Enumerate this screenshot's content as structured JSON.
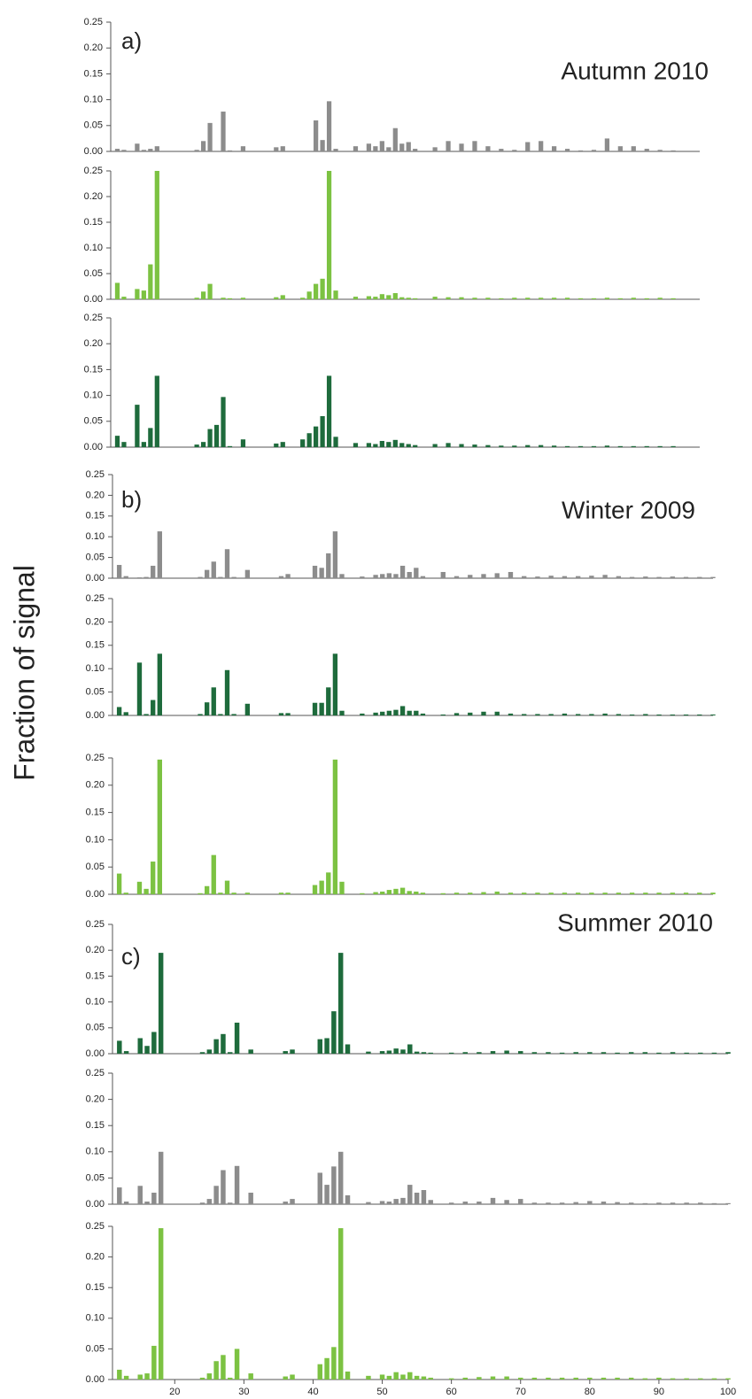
{
  "ylabel": "Fraction of signal",
  "chart_data": [
    {
      "type": "bar",
      "panel_label": "a)",
      "title": "Autumn 2010",
      "color": "#8c8c8c",
      "x": [
        12,
        13,
        15,
        16,
        17,
        18,
        24,
        25,
        26,
        27,
        28,
        29,
        31,
        36,
        37,
        39,
        40,
        41,
        42,
        43,
        44,
        45,
        48,
        50,
        51,
        52,
        53,
        54,
        55,
        56,
        57,
        60,
        62,
        64,
        66,
        68,
        70,
        72,
        74,
        76,
        78,
        80,
        82,
        84,
        86,
        88,
        90,
        92,
        94,
        96,
        98,
        100
      ],
      "values": [
        0.005,
        0.003,
        0.015,
        0.003,
        0.005,
        0.01,
        0.003,
        0.02,
        0.055,
        0,
        0.077,
        0.002,
        0.01,
        0.008,
        0.01,
        0,
        0,
        0,
        0.06,
        0.022,
        0.097,
        0.005,
        0.01,
        0.015,
        0.01,
        0.02,
        0.008,
        0.045,
        0.015,
        0.018,
        0.005,
        0.008,
        0.02,
        0.015,
        0.02,
        0.01,
        0.005,
        0.003,
        0.018,
        0.02,
        0.01,
        0.005,
        0.002,
        0.003,
        0.025,
        0.01,
        0.01,
        0.005,
        0.003,
        0.002,
        0,
        0
      ],
      "xlim": [
        11,
        100
      ],
      "ylim": [
        0,
        0.25
      ],
      "yticks": [
        {
          "value": 0,
          "label": "0.00"
        },
        {
          "value": 0.05,
          "label": "0.05"
        },
        {
          "value": 0.1,
          "label": "0.10"
        },
        {
          "value": 0.15,
          "label": "0.15"
        },
        {
          "value": 0.2,
          "label": "0.20"
        },
        {
          "value": 0.25,
          "label": "0.25"
        }
      ]
    },
    {
      "type": "bar",
      "color": "#7cc242",
      "x": [
        12,
        13,
        15,
        16,
        17,
        18,
        24,
        25,
        26,
        27,
        28,
        29,
        31,
        36,
        37,
        39,
        40,
        41,
        42,
        43,
        44,
        45,
        48,
        50,
        51,
        52,
        53,
        54,
        55,
        56,
        57,
        60,
        62,
        64,
        66,
        68,
        70,
        72,
        74,
        76,
        78,
        80,
        82,
        84,
        86,
        88,
        90,
        92,
        94,
        96,
        98,
        100
      ],
      "values": [
        0.032,
        0.005,
        0.02,
        0.017,
        0.068,
        0.25,
        0.003,
        0.015,
        0.03,
        0,
        0.003,
        0.002,
        0.003,
        0.004,
        0.008,
        0,
        0.003,
        0.015,
        0.03,
        0.04,
        0.25,
        0.017,
        0.005,
        0.006,
        0.005,
        0.01,
        0.008,
        0.012,
        0.004,
        0.003,
        0.002,
        0.005,
        0.004,
        0.004,
        0.003,
        0.003,
        0.002,
        0.003,
        0.003,
        0.003,
        0.003,
        0.003,
        0.002,
        0.002,
        0.003,
        0.002,
        0.003,
        0.002,
        0.003,
        0.002,
        0,
        0
      ],
      "xlim": [
        11,
        100
      ],
      "ylim": [
        0,
        0.25
      ],
      "yticks": [
        {
          "value": 0,
          "label": "0.00"
        },
        {
          "value": 0.05,
          "label": "0.05"
        },
        {
          "value": 0.1,
          "label": "0.10"
        },
        {
          "value": 0.15,
          "label": "0.15"
        },
        {
          "value": 0.2,
          "label": "0.20"
        },
        {
          "value": 0.25,
          "label": "0.25"
        }
      ]
    },
    {
      "type": "bar",
      "color": "#1e6b3c",
      "x": [
        12,
        13,
        15,
        16,
        17,
        18,
        24,
        25,
        26,
        27,
        28,
        29,
        31,
        36,
        37,
        39,
        40,
        41,
        42,
        43,
        44,
        45,
        48,
        50,
        51,
        52,
        53,
        54,
        55,
        56,
        57,
        60,
        62,
        64,
        66,
        68,
        70,
        72,
        74,
        76,
        78,
        80,
        82,
        84,
        86,
        88,
        90,
        92,
        94,
        96,
        98,
        100
      ],
      "values": [
        0.022,
        0.01,
        0.082,
        0.01,
        0.037,
        0.138,
        0.005,
        0.01,
        0.035,
        0.043,
        0.097,
        0.002,
        0.015,
        0.007,
        0.01,
        0,
        0.015,
        0.027,
        0.04,
        0.06,
        0.138,
        0.02,
        0.008,
        0.008,
        0.006,
        0.012,
        0.01,
        0.014,
        0.008,
        0.006,
        0.004,
        0.006,
        0.008,
        0.006,
        0.005,
        0.004,
        0.003,
        0.003,
        0.004,
        0.004,
        0.003,
        0.002,
        0.002,
        0.002,
        0.003,
        0.002,
        0.002,
        0.002,
        0.002,
        0.002,
        0,
        0
      ],
      "xlim": [
        11,
        100
      ],
      "ylim": [
        0,
        0.25
      ],
      "yticks": [
        {
          "value": 0,
          "label": "0.00"
        },
        {
          "value": 0.05,
          "label": "0.05"
        },
        {
          "value": 0.1,
          "label": "0.10"
        },
        {
          "value": 0.15,
          "label": "0.15"
        },
        {
          "value": 0.2,
          "label": "0.20"
        },
        {
          "value": 0.25,
          "label": "0.25"
        }
      ]
    },
    {
      "type": "bar",
      "panel_label": "b)",
      "title": "Winter 2009",
      "color": "#8c8c8c",
      "x": [
        12,
        13,
        15,
        16,
        17,
        18,
        24,
        25,
        26,
        27,
        28,
        29,
        31,
        36,
        37,
        39,
        40,
        41,
        42,
        43,
        44,
        45,
        48,
        50,
        51,
        52,
        53,
        54,
        55,
        56,
        57,
        60,
        62,
        64,
        66,
        68,
        70,
        72,
        74,
        76,
        78,
        80,
        82,
        84,
        86,
        88,
        90,
        92,
        94,
        96,
        98,
        100
      ],
      "values": [
        0.032,
        0.005,
        0.002,
        0.003,
        0.03,
        0.113,
        0.003,
        0.02,
        0.04,
        0.003,
        0.07,
        0.003,
        0.02,
        0.005,
        0.01,
        0,
        0,
        0.03,
        0.025,
        0.06,
        0.113,
        0.01,
        0.004,
        0.008,
        0.01,
        0.012,
        0.01,
        0.03,
        0.015,
        0.025,
        0.005,
        0.015,
        0.005,
        0.008,
        0.01,
        0.012,
        0.015,
        0.005,
        0.004,
        0.006,
        0.005,
        0.005,
        0.006,
        0.008,
        0.005,
        0.003,
        0.004,
        0.003,
        0.004,
        0.003,
        0.003,
        0.003
      ],
      "xlim": [
        11,
        100
      ],
      "ylim": [
        0,
        0.25
      ],
      "yticks": [
        {
          "value": 0,
          "label": "0.00"
        },
        {
          "value": 0.05,
          "label": "0.05"
        },
        {
          "value": 0.1,
          "label": "0.10"
        },
        {
          "value": 0.15,
          "label": "0.15"
        },
        {
          "value": 0.2,
          "label": "0.20"
        },
        {
          "value": 0.25,
          "label": "0.25"
        }
      ]
    },
    {
      "type": "bar",
      "color": "#1e6b3c",
      "x": [
        12,
        13,
        15,
        16,
        17,
        18,
        24,
        25,
        26,
        27,
        28,
        29,
        31,
        36,
        37,
        39,
        40,
        41,
        42,
        43,
        44,
        45,
        48,
        50,
        51,
        52,
        53,
        54,
        55,
        56,
        57,
        60,
        62,
        64,
        66,
        68,
        70,
        72,
        74,
        76,
        78,
        80,
        82,
        84,
        86,
        88,
        90,
        92,
        94,
        96,
        98,
        100
      ],
      "values": [
        0.018,
        0.007,
        0.113,
        0.003,
        0.033,
        0.132,
        0.003,
        0.028,
        0.06,
        0.003,
        0.097,
        0.003,
        0.025,
        0.005,
        0.005,
        0,
        0,
        0.027,
        0.027,
        0.06,
        0.132,
        0.01,
        0.004,
        0.006,
        0.008,
        0.01,
        0.012,
        0.02,
        0.01,
        0.01,
        0.004,
        0.002,
        0.005,
        0.006,
        0.008,
        0.008,
        0.004,
        0.003,
        0.003,
        0.003,
        0.004,
        0.003,
        0.003,
        0.004,
        0.003,
        0.002,
        0.003,
        0.002,
        0.002,
        0.002,
        0.002,
        0.002
      ],
      "xlim": [
        11,
        100
      ],
      "ylim": [
        0,
        0.25
      ],
      "yticks": [
        {
          "value": 0,
          "label": "0.00"
        },
        {
          "value": 0.05,
          "label": "0.05"
        },
        {
          "value": 0.1,
          "label": "0.10"
        },
        {
          "value": 0.15,
          "label": "0.15"
        },
        {
          "value": 0.2,
          "label": "0.20"
        },
        {
          "value": 0.25,
          "label": "0.25"
        }
      ]
    },
    {
      "type": "bar",
      "color": "#7cc242",
      "x": [
        12,
        13,
        15,
        16,
        17,
        18,
        24,
        25,
        26,
        27,
        28,
        29,
        31,
        36,
        37,
        39,
        40,
        41,
        42,
        43,
        44,
        45,
        48,
        50,
        51,
        52,
        53,
        54,
        55,
        56,
        57,
        60,
        62,
        64,
        66,
        68,
        70,
        72,
        74,
        76,
        78,
        80,
        82,
        84,
        86,
        88,
        90,
        92,
        94,
        96,
        98,
        100
      ],
      "values": [
        0.038,
        0.003,
        0.023,
        0.01,
        0.06,
        0.247,
        0.002,
        0.015,
        0.072,
        0.003,
        0.025,
        0.003,
        0.003,
        0.003,
        0.003,
        0,
        0,
        0.017,
        0.025,
        0.04,
        0.247,
        0.023,
        0.002,
        0.004,
        0.005,
        0.008,
        0.01,
        0.012,
        0.006,
        0.005,
        0.003,
        0.002,
        0.003,
        0.003,
        0.004,
        0.005,
        0.003,
        0.003,
        0.003,
        0.003,
        0.003,
        0.003,
        0.003,
        0.003,
        0.003,
        0.003,
        0.003,
        0.003,
        0.003,
        0.003,
        0.003,
        0.003
      ],
      "xlim": [
        11,
        100
      ],
      "ylim": [
        0,
        0.25
      ],
      "yticks": [
        {
          "value": 0,
          "label": "0.00"
        },
        {
          "value": 0.05,
          "label": "0.05"
        },
        {
          "value": 0.1,
          "label": "0.10"
        },
        {
          "value": 0.15,
          "label": "0.15"
        },
        {
          "value": 0.2,
          "label": "0.20"
        },
        {
          "value": 0.25,
          "label": "0.25"
        }
      ]
    },
    {
      "type": "bar",
      "panel_label": "c)",
      "title": "Summer 2010",
      "color": "#1e6b3c",
      "x": [
        12,
        13,
        15,
        16,
        17,
        18,
        24,
        25,
        26,
        27,
        28,
        29,
        31,
        36,
        37,
        39,
        40,
        41,
        42,
        43,
        44,
        45,
        48,
        50,
        51,
        52,
        53,
        54,
        55,
        56,
        57,
        60,
        62,
        64,
        66,
        68,
        70,
        72,
        74,
        76,
        78,
        80,
        82,
        84,
        86,
        88,
        90,
        92,
        94,
        96,
        98,
        100
      ],
      "values": [
        0.025,
        0.005,
        0.03,
        0.015,
        0.042,
        0.195,
        0.003,
        0.008,
        0.028,
        0.038,
        0.003,
        0.06,
        0.008,
        0.005,
        0.008,
        0,
        0,
        0.028,
        0.03,
        0.082,
        0.195,
        0.018,
        0.004,
        0.005,
        0.006,
        0.01,
        0.008,
        0.018,
        0.004,
        0.003,
        0.002,
        0.002,
        0.003,
        0.003,
        0.005,
        0.006,
        0.005,
        0.003,
        0.003,
        0.002,
        0.003,
        0.003,
        0.003,
        0.002,
        0.003,
        0.003,
        0.002,
        0.003,
        0.002,
        0.002,
        0.002,
        0.003
      ],
      "xlim": [
        11,
        100
      ],
      "ylim": [
        0,
        0.25
      ],
      "yticks": [
        {
          "value": 0,
          "label": "0.00"
        },
        {
          "value": 0.05,
          "label": "0.05"
        },
        {
          "value": 0.1,
          "label": "0.10"
        },
        {
          "value": 0.15,
          "label": "0.15"
        },
        {
          "value": 0.2,
          "label": "0.20"
        },
        {
          "value": 0.25,
          "label": "0.25"
        }
      ]
    },
    {
      "type": "bar",
      "color": "#8c8c8c",
      "x": [
        12,
        13,
        15,
        16,
        17,
        18,
        24,
        25,
        26,
        27,
        28,
        29,
        31,
        36,
        37,
        39,
        40,
        41,
        42,
        43,
        44,
        45,
        48,
        50,
        51,
        52,
        53,
        54,
        55,
        56,
        57,
        60,
        62,
        64,
        66,
        68,
        70,
        72,
        74,
        76,
        78,
        80,
        82,
        84,
        86,
        88,
        90,
        92,
        94,
        96,
        98,
        100
      ],
      "values": [
        0.032,
        0.005,
        0.035,
        0.005,
        0.022,
        0.1,
        0.003,
        0.01,
        0.035,
        0.065,
        0.003,
        0.073,
        0.022,
        0.005,
        0.01,
        0,
        0,
        0.06,
        0.037,
        0.072,
        0.1,
        0.017,
        0.004,
        0.006,
        0.005,
        0.01,
        0.012,
        0.037,
        0.022,
        0.027,
        0.008,
        0.003,
        0.005,
        0.005,
        0.012,
        0.008,
        0.01,
        0.003,
        0.003,
        0.003,
        0.004,
        0.006,
        0.005,
        0.004,
        0.003,
        0.002,
        0.003,
        0.003,
        0.003,
        0.003,
        0.002,
        0.002
      ],
      "xlim": [
        11,
        100
      ],
      "ylim": [
        0,
        0.25
      ],
      "yticks": [
        {
          "value": 0,
          "label": "0.00"
        },
        {
          "value": 0.05,
          "label": "0.05"
        },
        {
          "value": 0.1,
          "label": "0.10"
        },
        {
          "value": 0.15,
          "label": "0.15"
        },
        {
          "value": 0.2,
          "label": "0.20"
        },
        {
          "value": 0.25,
          "label": "0.25"
        }
      ]
    },
    {
      "type": "bar",
      "color": "#7cc242",
      "x": [
        12,
        13,
        15,
        16,
        17,
        18,
        24,
        25,
        26,
        27,
        28,
        29,
        31,
        36,
        37,
        39,
        40,
        41,
        42,
        43,
        44,
        45,
        48,
        50,
        51,
        52,
        53,
        54,
        55,
        56,
        57,
        60,
        62,
        64,
        66,
        68,
        70,
        72,
        74,
        76,
        78,
        80,
        82,
        84,
        86,
        88,
        90,
        92,
        94,
        96,
        98,
        100
      ],
      "values": [
        0.016,
        0.006,
        0.008,
        0.01,
        0.055,
        0.247,
        0.003,
        0.01,
        0.03,
        0.04,
        0.003,
        0.05,
        0.01,
        0.005,
        0.008,
        0,
        0,
        0.025,
        0.035,
        0.053,
        0.247,
        0.013,
        0.006,
        0.008,
        0.006,
        0.012,
        0.008,
        0.012,
        0.006,
        0.005,
        0.003,
        0.002,
        0.003,
        0.004,
        0.005,
        0.005,
        0.003,
        0.003,
        0.003,
        0.003,
        0.003,
        0.003,
        0.003,
        0.003,
        0.003,
        0.002,
        0.003,
        0.002,
        0.002,
        0.002,
        0.002,
        0.002
      ],
      "xlim": [
        11,
        100
      ],
      "ylim": [
        0,
        0.25
      ],
      "yticks": [
        {
          "value": 0,
          "label": "0.00"
        },
        {
          "value": 0.05,
          "label": "0.05"
        },
        {
          "value": 0.1,
          "label": "0.10"
        },
        {
          "value": 0.15,
          "label": "0.15"
        },
        {
          "value": 0.2,
          "label": "0.20"
        },
        {
          "value": 0.25,
          "label": "0.25"
        }
      ],
      "xticks": [
        20,
        30,
        40,
        50,
        60,
        70,
        80,
        90,
        100
      ]
    }
  ]
}
